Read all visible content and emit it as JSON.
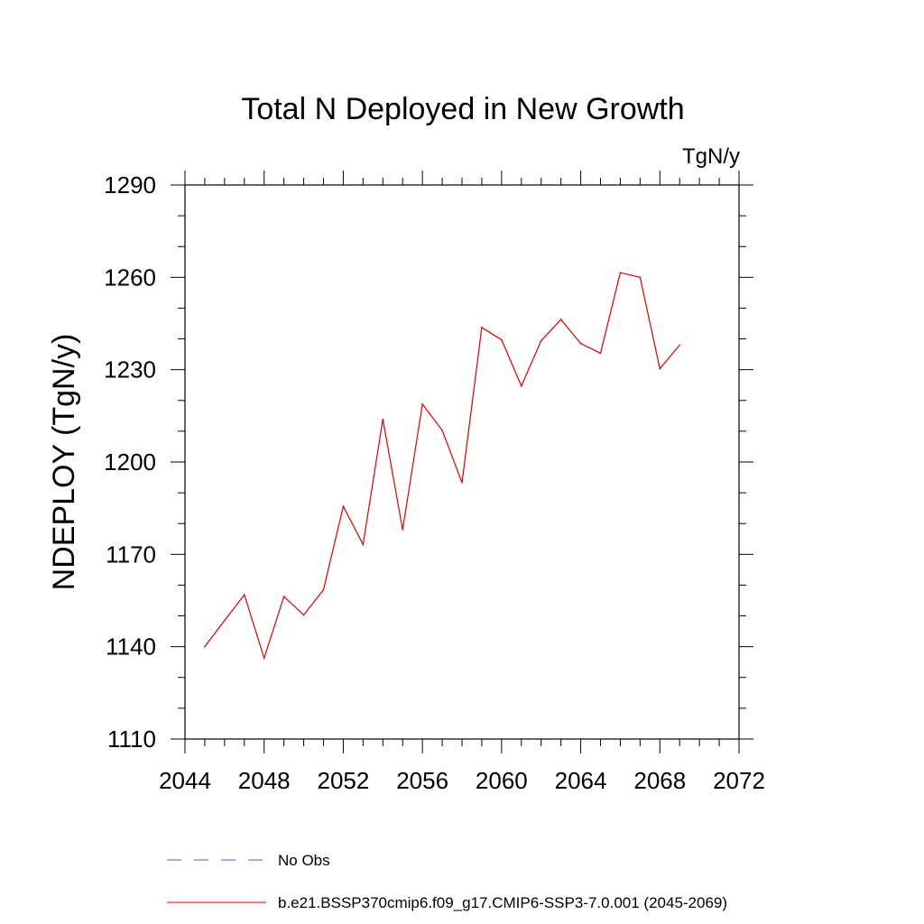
{
  "chart_data": {
    "type": "line",
    "title": "Total N Deployed in New Growth",
    "units_label": "TgN/y",
    "ylabel": "NDEPLOY  (TgN/y)",
    "xlabel": "",
    "xlim": [
      2044,
      2072
    ],
    "ylim": [
      1110,
      1290
    ],
    "x_ticks": [
      2044,
      2048,
      2052,
      2056,
      2060,
      2064,
      2068,
      2072
    ],
    "y_ticks": [
      1110,
      1140,
      1170,
      1200,
      1230,
      1260,
      1290
    ],
    "x_minor_step": 1,
    "y_minor_step": 10,
    "grid": false,
    "legend_position": "bottom-left",
    "series": [
      {
        "name": "No Obs",
        "color": "#5a5ab4",
        "dash": "dashed",
        "x": [],
        "y": []
      },
      {
        "name": "b.e21.BSSP370cmip6.f09_g17.CMIP6-SSP3-7.0.001 (2045-2069)",
        "color": "#e00000",
        "dash": "solid",
        "x": [
          2045,
          2046,
          2047,
          2048,
          2049,
          2050,
          2051,
          2052,
          2053,
          2054,
          2055,
          2056,
          2057,
          2058,
          2059,
          2060,
          2061,
          2062,
          2063,
          2064,
          2065,
          2066,
          2067,
          2068,
          2069
        ],
        "y": [
          1140,
          1148.5,
          1156.9,
          1136.3,
          1156.3,
          1150.3,
          1158.5,
          1185.6,
          1173.2,
          1213.9,
          1178.0,
          1218.8,
          1210.3,
          1193.3,
          1243.7,
          1239.7,
          1224.7,
          1239.4,
          1246.3,
          1238.5,
          1235.3,
          1261.5,
          1260.0,
          1230.3,
          1238.0
        ]
      }
    ]
  }
}
